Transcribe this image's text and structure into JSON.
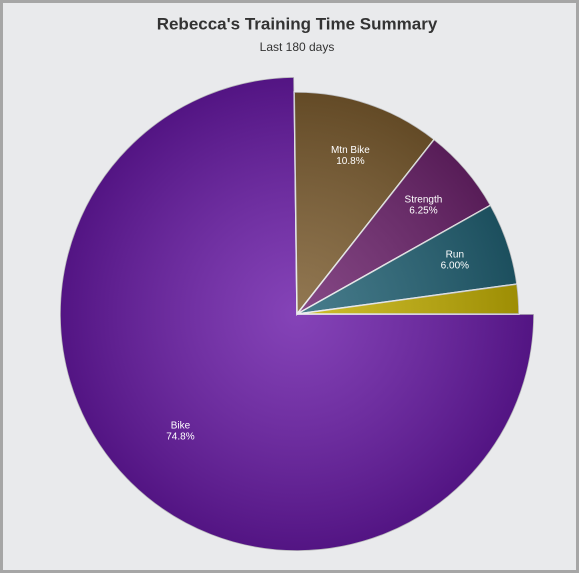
{
  "chart_data": {
    "type": "pie",
    "title": "Rebecca's Training Time Summary",
    "subtitle": "Last 180 days",
    "categories": [
      "Bike",
      "Mtn Bike",
      "Strength",
      "Run",
      null
    ],
    "values": [
      74.8,
      10.8,
      6.25,
      6.0,
      2.15
    ],
    "value_labels": [
      "74.8%",
      "10.8%",
      "6.25%",
      "6.00%",
      null
    ],
    "colors": [
      "#6a1aa8",
      "#7a5a2c",
      "#6b206b",
      "#1f6073",
      "#c4b000"
    ]
  }
}
